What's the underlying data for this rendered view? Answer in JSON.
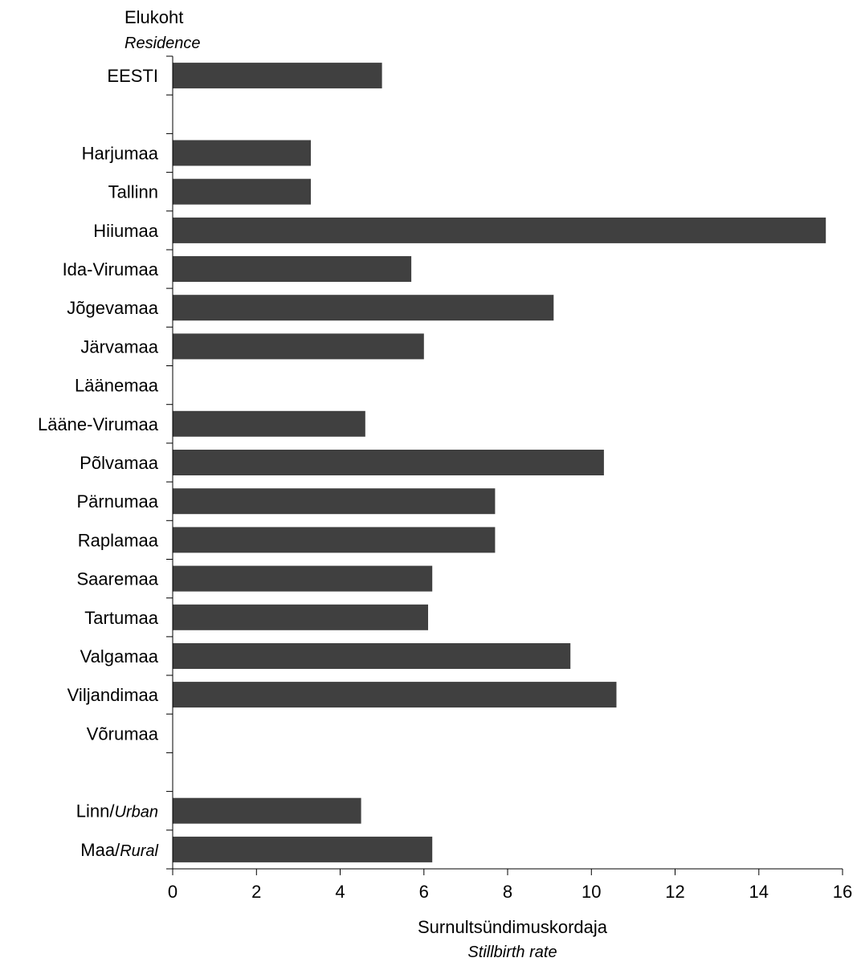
{
  "chart_data": {
    "type": "bar",
    "orientation": "horizontal",
    "y_title": "Elukoht",
    "y_title_en": "Residence",
    "xlabel": "Surnultsündimuskordaja",
    "xlabel_en": "Stillbirth rate",
    "xlim": [
      0,
      16
    ],
    "xticks": [
      0,
      2,
      4,
      6,
      8,
      10,
      12,
      14,
      16
    ],
    "grid": false,
    "legend": "none",
    "bar_color": "#404040",
    "categories": [
      {
        "label": "EESTI",
        "label_en": "",
        "value": 5.0
      },
      {
        "label": "",
        "label_en": "",
        "value": null
      },
      {
        "label": "Harjumaa",
        "label_en": "",
        "value": 3.3
      },
      {
        "label": "Tallinn",
        "label_en": "",
        "value": 3.3
      },
      {
        "label": "Hiiumaa",
        "label_en": "",
        "value": 15.6
      },
      {
        "label": "Ida-Virumaa",
        "label_en": "",
        "value": 5.7
      },
      {
        "label": "Jõgevamaa",
        "label_en": "",
        "value": 9.1
      },
      {
        "label": "Järvamaa",
        "label_en": "",
        "value": 6.0
      },
      {
        "label": "Läänemaa",
        "label_en": "",
        "value": 0
      },
      {
        "label": "Lääne-Virumaa",
        "label_en": "",
        "value": 4.6
      },
      {
        "label": "Põlvamaa",
        "label_en": "",
        "value": 10.3
      },
      {
        "label": "Pärnumaa",
        "label_en": "",
        "value": 7.7
      },
      {
        "label": "Raplamaa",
        "label_en": "",
        "value": 7.7
      },
      {
        "label": "Saaremaa",
        "label_en": "",
        "value": 6.2
      },
      {
        "label": "Tartumaa",
        "label_en": "",
        "value": 6.1
      },
      {
        "label": "Valgamaa",
        "label_en": "",
        "value": 9.5
      },
      {
        "label": "Viljandimaa",
        "label_en": "",
        "value": 10.6
      },
      {
        "label": "Võrumaa",
        "label_en": "",
        "value": 0
      },
      {
        "label": "",
        "label_en": "",
        "value": null
      },
      {
        "label": "Linn/",
        "label_en": "Urban",
        "value": 4.5
      },
      {
        "label": "Maa/",
        "label_en": "Rural",
        "value": 6.2
      }
    ]
  }
}
